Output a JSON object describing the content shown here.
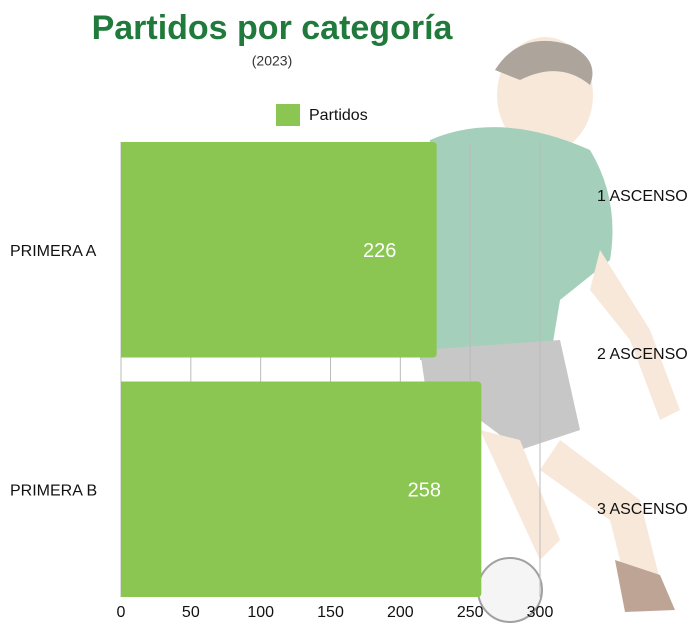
{
  "chart_data": {
    "type": "bar",
    "orientation": "horizontal",
    "title": "Partidos por categoría",
    "subtitle": "(2023)",
    "categories": [
      "PRIMERA A",
      "PRIMERA B"
    ],
    "secondary_categories": [
      "1 ASCENSO",
      "2 ASCENSO",
      "3 ASCENSO"
    ],
    "series": [
      {
        "name": "Partidos",
        "color": "#8bc653",
        "values": [
          226,
          258
        ]
      }
    ],
    "xlim": [
      0,
      300
    ],
    "xticks": [
      0,
      50,
      100,
      150,
      200,
      250,
      300
    ],
    "grid": true
  }
}
